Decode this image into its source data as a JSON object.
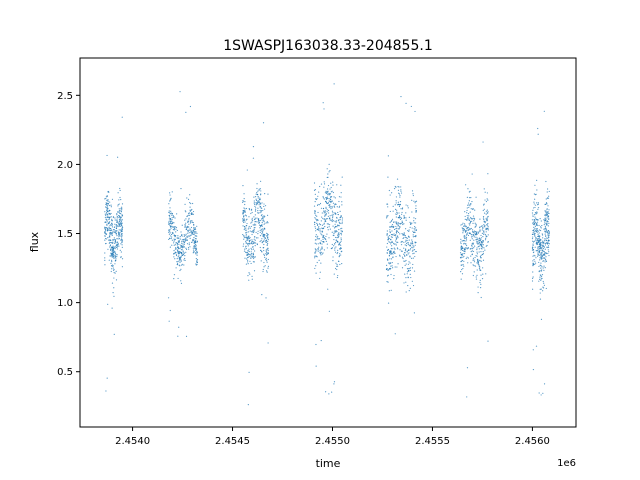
{
  "chart_data": {
    "type": "scatter",
    "title": "1SWASPJ163038.33-204855.1",
    "xlabel": "time",
    "ylabel": "flux",
    "x_offset_label": "1e6",
    "xlim": [
      2453737,
      2456218
    ],
    "ylim": [
      0.1,
      2.77
    ],
    "x_ticks": [
      2454000,
      2454500,
      2455000,
      2455500,
      2456000
    ],
    "x_tick_labels": [
      "2.4540",
      "2.4545",
      "2.4550",
      "2.4555",
      "2.4560"
    ],
    "y_ticks": [
      0.5,
      1.0,
      1.5,
      2.0,
      2.5
    ],
    "y_tick_labels": [
      "0.5",
      "1.0",
      "1.5",
      "2.0",
      "2.5"
    ],
    "grid": false,
    "marker_color": "#1f77b4",
    "segments": [
      {
        "x_start": 2453860,
        "x_end": 2453950,
        "y_center": 1.48,
        "y_spread": 0.22,
        "y_min": 0.25,
        "y_max": 2.73
      },
      {
        "x_start": 2454180,
        "x_end": 2454325,
        "y_center": 1.47,
        "y_spread": 0.17,
        "y_min": 0.75,
        "y_max": 2.62
      },
      {
        "x_start": 2454550,
        "x_end": 2454680,
        "y_center": 1.53,
        "y_spread": 0.26,
        "y_min": 0.22,
        "y_max": 2.62
      },
      {
        "x_start": 2454910,
        "x_end": 2455050,
        "y_center": 1.6,
        "y_spread": 0.28,
        "y_min": 0.25,
        "y_max": 2.6
      },
      {
        "x_start": 2455270,
        "x_end": 2455420,
        "y_center": 1.5,
        "y_spread": 0.3,
        "y_min": 0.28,
        "y_max": 2.65
      },
      {
        "x_start": 2455640,
        "x_end": 2455780,
        "y_center": 1.47,
        "y_spread": 0.24,
        "y_min": 0.28,
        "y_max": 2.45
      },
      {
        "x_start": 2456000,
        "x_end": 2456085,
        "y_center": 1.45,
        "y_spread": 0.26,
        "y_min": 0.25,
        "y_max": 2.4
      }
    ]
  }
}
